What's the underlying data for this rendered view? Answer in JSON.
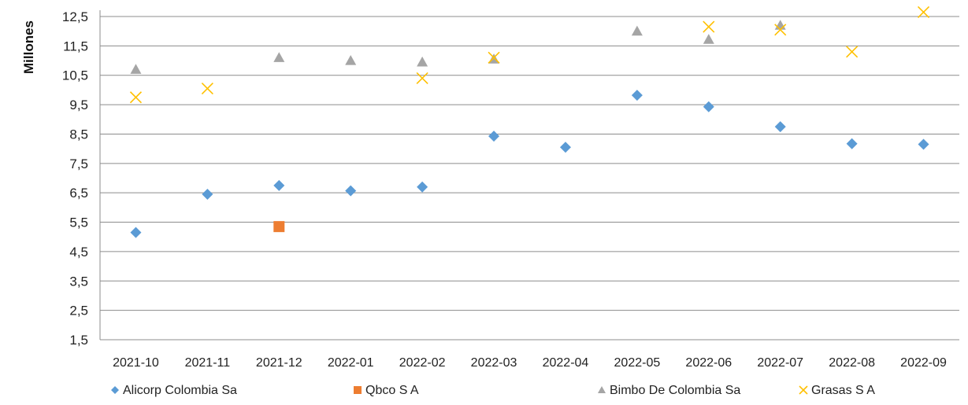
{
  "chart_data": {
    "type": "scatter",
    "categories": [
      "2021-10",
      "2021-11",
      "2021-12",
      "2022-01",
      "2022-02",
      "2022-03",
      "2022-04",
      "2022-05",
      "2022-06",
      "2022-07",
      "2022-08",
      "2022-09"
    ],
    "ylabel": "Millones",
    "ylim": [
      1.5,
      12.5
    ],
    "yticks": [
      "12,5",
      "11,5",
      "10,5",
      "9,5",
      "8,5",
      "7,5",
      "6,5",
      "5,5",
      "4,5",
      "3,5",
      "2,5",
      "1,5"
    ],
    "ytick_values": [
      12.5,
      11.5,
      10.5,
      9.5,
      8.5,
      7.5,
      6.5,
      5.5,
      4.5,
      3.5,
      2.5,
      1.5
    ],
    "grid": true,
    "legend_position": "bottom",
    "series": [
      {
        "name": "Alicorp Colombia Sa",
        "marker": "diamond",
        "color": "#5b9bd5",
        "values": [
          5.15,
          6.45,
          6.75,
          6.57,
          6.7,
          8.43,
          8.05,
          9.82,
          9.43,
          8.75,
          8.17,
          8.15
        ]
      },
      {
        "name": "Qbco S A",
        "marker": "square",
        "color": "#ed7d31",
        "values": [
          null,
          null,
          5.35,
          null,
          null,
          null,
          null,
          null,
          null,
          null,
          null,
          null
        ]
      },
      {
        "name": "Bimbo De Colombia Sa",
        "marker": "triangle",
        "color": "#a5a5a5",
        "values": [
          10.7,
          null,
          11.1,
          11.0,
          10.95,
          11.05,
          null,
          12.0,
          11.72,
          12.2,
          null,
          null
        ]
      },
      {
        "name": "Grasas S A",
        "marker": "x",
        "color": "#ffc000",
        "values": [
          9.75,
          10.05,
          null,
          null,
          10.4,
          11.1,
          null,
          null,
          12.15,
          12.05,
          11.3,
          12.65
        ]
      }
    ]
  }
}
